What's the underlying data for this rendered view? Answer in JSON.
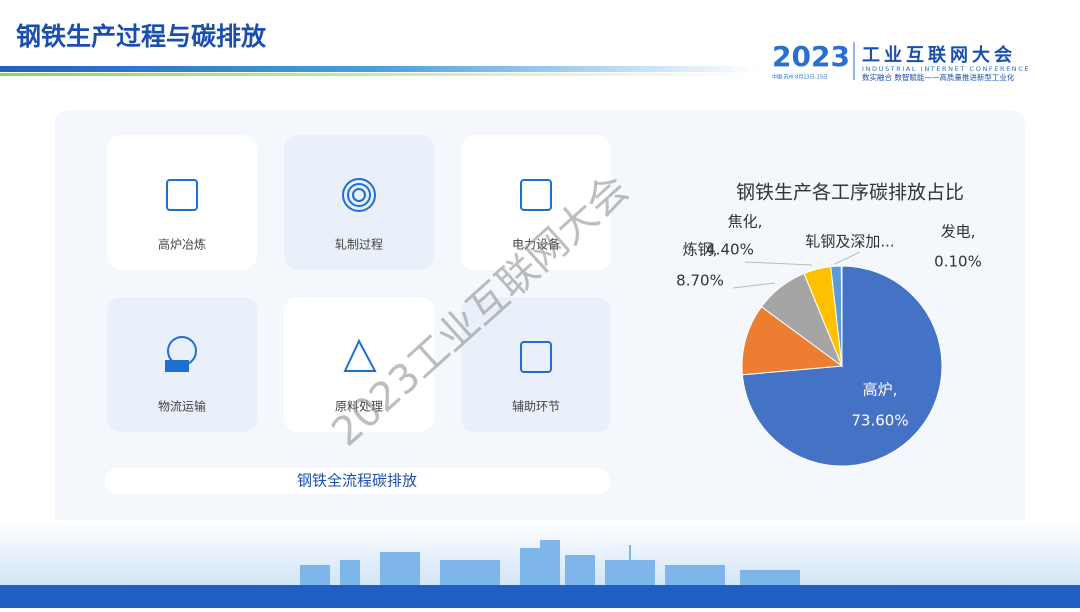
{
  "header": {
    "title": "钢铁生产过程与碳排放"
  },
  "logo": {
    "year": "2023",
    "name": "工业互联网大会",
    "english": "INDUSTRIAL INTERNET CONFERENCE",
    "place": "中国·苏州 8月13日-15日",
    "slogan": "数实融合  数智赋能——高质量推进新型工业化"
  },
  "cards": [
    {
      "label": "高炉冶炼"
    },
    {
      "label": "轧制过程"
    },
    {
      "label": "电力设备"
    },
    {
      "label": "物流运输"
    },
    {
      "label": "原料处理"
    },
    {
      "label": "辅助环节"
    }
  ],
  "footer_label": "钢铁全流程碳排放",
  "watermark": "2023工业互联网大会",
  "chart_data": {
    "type": "pie",
    "title": "钢铁生产各工序碳排放占比",
    "categories": [
      "高炉,",
      null,
      "炼钢,",
      "焦化,",
      "轧钢及深加...",
      "发电,"
    ],
    "values": [
      73.6,
      11.5,
      8.7,
      4.4,
      1.7,
      0.1
    ],
    "value_labels": [
      "73.60%",
      null,
      "8.70%",
      "4.40%",
      null,
      "0.10%"
    ],
    "colors": [
      "#4472c4",
      "#ed7d31",
      "#a5a5a5",
      "#ffc000",
      "#5b9bd5",
      "#70ad47"
    ]
  }
}
